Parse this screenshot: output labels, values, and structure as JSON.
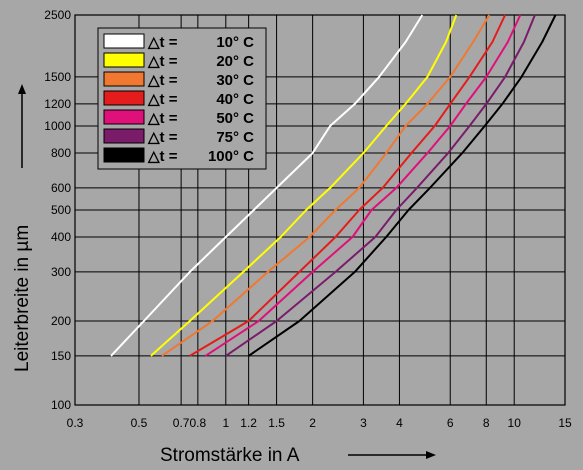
{
  "chart_data": {
    "type": "line",
    "title": "",
    "xlabel": "Stromstärke in A",
    "ylabel": "Leiterbreite in µm",
    "x_scale": "log",
    "y_scale": "log",
    "xlim": [
      0.3,
      15
    ],
    "ylim": [
      100,
      2500
    ],
    "x_ticks": [
      {
        "v": 0.3,
        "label": "0.3"
      },
      {
        "v": 0.5,
        "label": "0.5"
      },
      {
        "v": 0.7,
        "label": "0.7"
      },
      {
        "v": 0.8,
        "label": "0.8"
      },
      {
        "v": 1.0,
        "label": "1"
      },
      {
        "v": 1.2,
        "label": "1.2"
      },
      {
        "v": 1.5,
        "label": "1.5"
      },
      {
        "v": 2,
        "label": "2"
      },
      {
        "v": 3,
        "label": "3"
      },
      {
        "v": 4,
        "label": "4"
      },
      {
        "v": 6,
        "label": "6"
      },
      {
        "v": 8,
        "label": "8"
      },
      {
        "v": 10,
        "label": "10"
      },
      {
        "v": 15,
        "label": "15"
      }
    ],
    "y_ticks": [
      {
        "v": 100,
        "label": "100"
      },
      {
        "v": 150,
        "label": "150"
      },
      {
        "v": 200,
        "label": "200"
      },
      {
        "v": 300,
        "label": "300"
      },
      {
        "v": 400,
        "label": "400"
      },
      {
        "v": 500,
        "label": "500"
      },
      {
        "v": 600,
        "label": "600"
      },
      {
        "v": 800,
        "label": "800"
      },
      {
        "v": 1000,
        "label": "1000"
      },
      {
        "v": 1200,
        "label": "1200"
      },
      {
        "v": 1500,
        "label": "1500"
      },
      {
        "v": 2500,
        "label": "2500"
      }
    ],
    "grid": true,
    "legend_position": "top-left",
    "legend_prefix": "△t =",
    "series": [
      {
        "name": "10° C",
        "color": "#ffffff",
        "points": [
          [
            0.4,
            150
          ],
          [
            0.52,
            200
          ],
          [
            0.75,
            300
          ],
          [
            1.0,
            400
          ],
          [
            1.25,
            500
          ],
          [
            1.5,
            600
          ],
          [
            2.0,
            800
          ],
          [
            2.3,
            1000
          ],
          [
            2.8,
            1200
          ],
          [
            3.4,
            1500
          ],
          [
            4.2,
            2000
          ],
          [
            4.8,
            2500
          ]
        ]
      },
      {
        "name": "20° C",
        "color": "#ffff00",
        "points": [
          [
            0.55,
            150
          ],
          [
            0.75,
            200
          ],
          [
            1.15,
            300
          ],
          [
            1.55,
            400
          ],
          [
            1.9,
            500
          ],
          [
            2.3,
            600
          ],
          [
            3.0,
            800
          ],
          [
            3.6,
            1000
          ],
          [
            4.2,
            1200
          ],
          [
            5.0,
            1500
          ],
          [
            5.8,
            2000
          ],
          [
            6.3,
            2500
          ]
        ]
      },
      {
        "name": "30° C",
        "color": "#f07830",
        "points": [
          [
            0.6,
            150
          ],
          [
            0.9,
            200
          ],
          [
            1.4,
            300
          ],
          [
            1.95,
            400
          ],
          [
            2.4,
            500
          ],
          [
            2.9,
            600
          ],
          [
            3.6,
            800
          ],
          [
            4.2,
            1000
          ],
          [
            5.0,
            1200
          ],
          [
            6.0,
            1500
          ],
          [
            7.2,
            2000
          ],
          [
            8.2,
            2500
          ]
        ]
      },
      {
        "name": "40° C",
        "color": "#e41c1c",
        "points": [
          [
            0.75,
            150
          ],
          [
            1.2,
            200
          ],
          [
            1.8,
            300
          ],
          [
            2.4,
            400
          ],
          [
            2.9,
            500
          ],
          [
            3.5,
            600
          ],
          [
            4.4,
            800
          ],
          [
            5.3,
            1000
          ],
          [
            6.0,
            1200
          ],
          [
            7.0,
            1500
          ],
          [
            8.4,
            2000
          ],
          [
            9.3,
            2500
          ]
        ]
      },
      {
        "name": "50° C",
        "color": "#e0107a",
        "points": [
          [
            0.85,
            150
          ],
          [
            1.3,
            200
          ],
          [
            2.0,
            300
          ],
          [
            2.75,
            400
          ],
          [
            3.2,
            500
          ],
          [
            3.9,
            600
          ],
          [
            5.0,
            800
          ],
          [
            6.0,
            1000
          ],
          [
            6.8,
            1200
          ],
          [
            8.0,
            1500
          ],
          [
            9.5,
            2000
          ],
          [
            10.5,
            2500
          ]
        ]
      },
      {
        "name": "75° C",
        "color": "#7a1c6a",
        "points": [
          [
            1.0,
            150
          ],
          [
            1.5,
            200
          ],
          [
            2.4,
            300
          ],
          [
            3.3,
            400
          ],
          [
            3.9,
            500
          ],
          [
            4.6,
            600
          ],
          [
            5.9,
            800
          ],
          [
            7.0,
            1000
          ],
          [
            8.0,
            1200
          ],
          [
            9.3,
            1500
          ],
          [
            10.8,
            2000
          ],
          [
            11.8,
            2500
          ]
        ]
      },
      {
        "name": "100° C",
        "color": "#000000",
        "points": [
          [
            1.2,
            150
          ],
          [
            1.8,
            200
          ],
          [
            2.8,
            300
          ],
          [
            3.6,
            400
          ],
          [
            4.3,
            500
          ],
          [
            5.1,
            600
          ],
          [
            6.6,
            800
          ],
          [
            7.9,
            1000
          ],
          [
            9.1,
            1200
          ],
          [
            10.6,
            1500
          ],
          [
            12.5,
            2000
          ],
          [
            13.9,
            2500
          ]
        ]
      }
    ]
  }
}
